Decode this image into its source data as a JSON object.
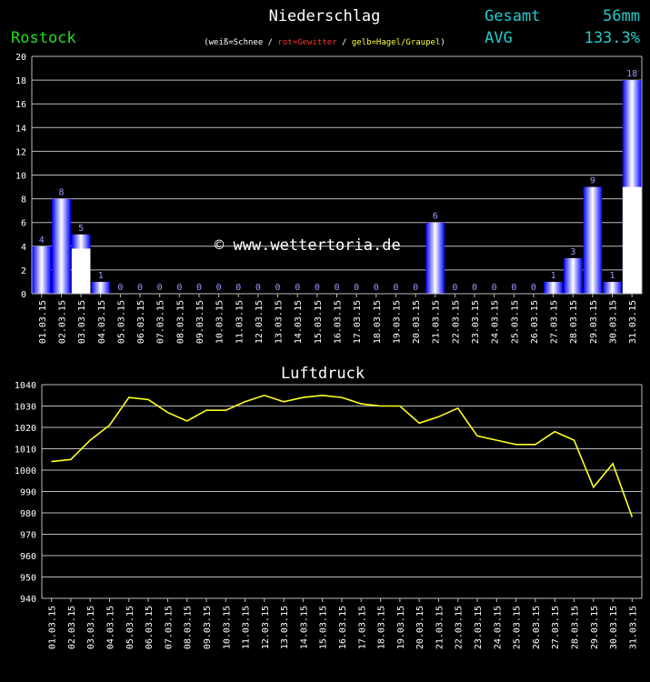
{
  "header": {
    "title": "Niederschlag",
    "station": "Rostock",
    "total_label": "Gesamt",
    "total_value": "56mm",
    "avg_label": "AVG",
    "avg_value": "133.3%",
    "legend": {
      "open": "(",
      "snow": "weiß=Schnee",
      "sep1": " / ",
      "storm": "rot=Gewitter",
      "sep2": " / ",
      "hail": "gelb=Hagel/Graupel",
      "close": ")"
    },
    "watermark": "© www.wettertoria.de"
  },
  "colors": {
    "station": "#22dd22",
    "stats": "#22cccc",
    "bar_edge": "#0000ff",
    "bar_center": "#ffffff",
    "snow": "#ffffff",
    "storm": "#ff3333",
    "hail": "#ffff44",
    "line": "#ffff22",
    "value_label": "#9999ff",
    "grid": "#bbbbbb"
  },
  "chart_data": [
    {
      "type": "bar",
      "title": "Niederschlag",
      "categories": [
        "01.03.15",
        "02.03.15",
        "03.03.15",
        "04.03.15",
        "05.03.15",
        "06.03.15",
        "07.03.15",
        "08.03.15",
        "09.03.15",
        "10.03.15",
        "11.03.15",
        "12.03.15",
        "13.03.15",
        "14.03.15",
        "15.03.15",
        "16.03.15",
        "17.03.15",
        "18.03.15",
        "19.03.15",
        "20.03.15",
        "21.03.15",
        "22.03.15",
        "23.03.15",
        "24.03.15",
        "25.03.15",
        "26.03.15",
        "27.03.15",
        "28.03.15",
        "29.03.15",
        "30.03.15",
        "31.03.15"
      ],
      "values": [
        4,
        8,
        5,
        1,
        0,
        0,
        0,
        0,
        0,
        0,
        0,
        0,
        0,
        0,
        0,
        0,
        0,
        0,
        0,
        0,
        6,
        0,
        0,
        0,
        0,
        0,
        1,
        3,
        9,
        1,
        18
      ],
      "snow": [
        0,
        0,
        3.8,
        0,
        0,
        0,
        0,
        0,
        0,
        0,
        0,
        0,
        0,
        0,
        0,
        0,
        0,
        0,
        0,
        0,
        0,
        0,
        0,
        0,
        0,
        0,
        0,
        0,
        0,
        0,
        9
      ],
      "ylim": [
        0,
        20
      ],
      "yticks": [
        0,
        2,
        4,
        6,
        8,
        10,
        12,
        14,
        16,
        18,
        20
      ],
      "grid": true
    },
    {
      "type": "line",
      "title": "Luftdruck",
      "categories": [
        "01.03.15",
        "02.03.15",
        "03.03.15",
        "04.03.15",
        "05.03.15",
        "06.03.15",
        "07.03.15",
        "08.03.15",
        "09.03.15",
        "10.03.15",
        "11.03.15",
        "12.03.15",
        "13.03.15",
        "14.03.15",
        "15.03.15",
        "16.03.15",
        "17.03.15",
        "18.03.15",
        "19.03.15",
        "20.03.15",
        "21.03.15",
        "22.03.15",
        "23.03.15",
        "24.03.15",
        "25.03.15",
        "26.03.15",
        "27.03.15",
        "28.03.15",
        "29.03.15",
        "30.03.15",
        "31.03.15"
      ],
      "values": [
        1004,
        1005,
        1014,
        1021,
        1034,
        1033,
        1027,
        1023,
        1028,
        1028,
        1032,
        1035,
        1032,
        1034,
        1035,
        1034,
        1031,
        1030,
        1030,
        1022,
        1025,
        1029,
        1016,
        1014,
        1012,
        1012,
        1018,
        1014,
        992,
        1003,
        978
      ],
      "ylim": [
        940,
        1040
      ],
      "yticks": [
        940,
        950,
        960,
        970,
        980,
        990,
        1000,
        1010,
        1020,
        1030,
        1040
      ],
      "grid": true
    }
  ]
}
